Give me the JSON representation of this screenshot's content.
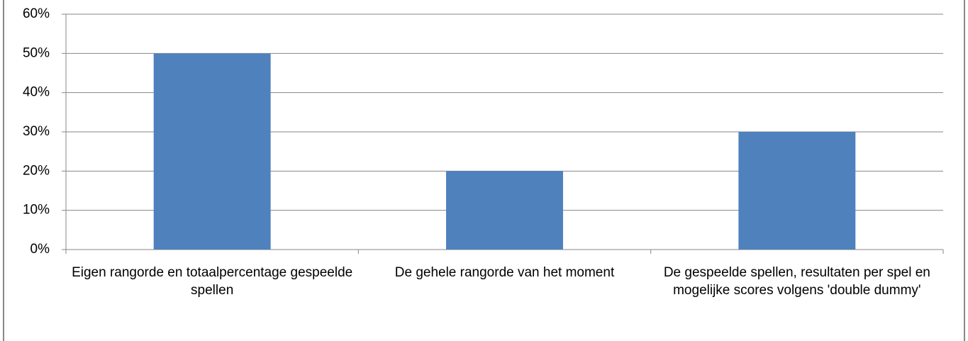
{
  "chart_data": {
    "type": "bar",
    "categories": [
      "Eigen rangorde en totaalpercentage gespeelde spellen",
      "De gehele rangorde van het moment",
      "De gespeelde spellen, resultaten per spel en mogelijke scores volgens 'double dummy'"
    ],
    "values": [
      50,
      20,
      30
    ],
    "color": "#4f81bd",
    "ylim": [
      0,
      60
    ],
    "yticks": [
      {
        "value": 0,
        "label": "0%"
      },
      {
        "value": 10,
        "label": "10%"
      },
      {
        "value": 20,
        "label": "20%"
      },
      {
        "value": 30,
        "label": "30%"
      },
      {
        "value": 40,
        "label": "40%"
      },
      {
        "value": 50,
        "label": "50%"
      },
      {
        "value": 60,
        "label": "60%"
      }
    ],
    "grid": true
  }
}
